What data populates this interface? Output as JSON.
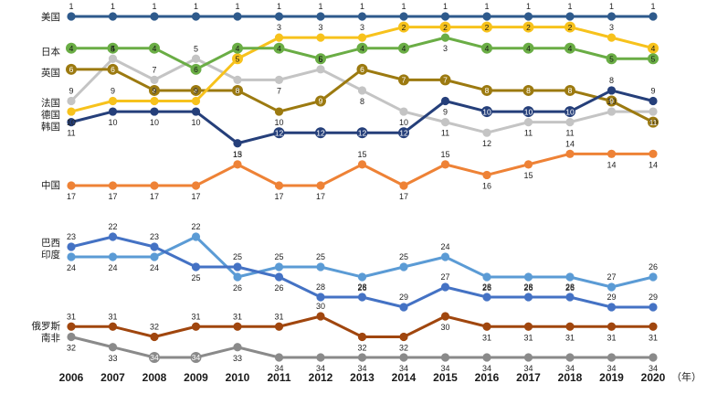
{
  "chart_data": {
    "type": "line",
    "title": "",
    "xlabel": "",
    "ylabel": "",
    "x_unit_label": "（年）",
    "y_reversed": true,
    "grid": false,
    "legend": "none",
    "x": [
      "2006",
      "2007",
      "2008",
      "2009",
      "2010",
      "2011",
      "2012",
      "2013",
      "2014",
      "2015",
      "2016",
      "2017",
      "2018",
      "2019",
      "2020"
    ],
    "series": [
      {
        "name": "美国",
        "color": "#2e5a8c",
        "values": [
          1,
          1,
          1,
          1,
          1,
          1,
          1,
          1,
          1,
          1,
          1,
          1,
          1,
          1,
          1
        ]
      },
      {
        "name": "日本",
        "color": "#6aad45",
        "values": [
          4,
          4,
          4,
          6,
          4,
          4,
          5,
          4,
          4,
          3,
          4,
          4,
          4,
          5,
          5
        ]
      },
      {
        "name": "英国",
        "color": "#9c7a10",
        "values": [
          6,
          6,
          8,
          8,
          8,
          10,
          9,
          6,
          7,
          7,
          8,
          8,
          8,
          9,
          11
        ]
      },
      {
        "name": "法国",
        "color": "#c4c4c4",
        "values": [
          9,
          5,
          7,
          5,
          7,
          7,
          6,
          8,
          10,
          11,
          12,
          11,
          11,
          10,
          10
        ]
      },
      {
        "name": "德国",
        "color": "#f7c21c",
        "values": [
          10,
          9,
          9,
          9,
          5,
          3,
          3,
          3,
          2,
          2,
          2,
          2,
          2,
          3,
          4
        ]
      },
      {
        "name": "韩国",
        "color": "#253f7a",
        "values": [
          11,
          10,
          10,
          10,
          13,
          12,
          12,
          12,
          12,
          9,
          10,
          10,
          10,
          8,
          9
        ]
      },
      {
        "name": "中国",
        "color": "#ee8236",
        "values": [
          17,
          17,
          17,
          17,
          15,
          17,
          17,
          15,
          17,
          15,
          16,
          15,
          14,
          14,
          14
        ]
      },
      {
        "name": "巴西",
        "color": "#4472c4",
        "values": [
          23,
          22,
          23,
          25,
          25,
          26,
          28,
          28,
          29,
          27,
          28,
          28,
          28,
          29,
          29
        ]
      },
      {
        "name": "印度",
        "color": "#5b9bd5",
        "values": [
          24,
          24,
          24,
          22,
          26,
          25,
          25,
          26,
          25,
          24,
          26,
          26,
          26,
          27,
          26
        ]
      },
      {
        "name": "俄罗斯",
        "color": "#a0460e",
        "values": [
          31,
          31,
          32,
          31,
          31,
          31,
          30,
          32,
          32,
          30,
          31,
          31,
          31,
          31,
          31
        ]
      },
      {
        "name": "南非",
        "color": "#8a8a8a",
        "values": [
          32,
          33,
          34,
          34,
          33,
          34,
          34,
          34,
          34,
          34,
          34,
          34,
          34,
          34,
          34
        ]
      }
    ]
  }
}
